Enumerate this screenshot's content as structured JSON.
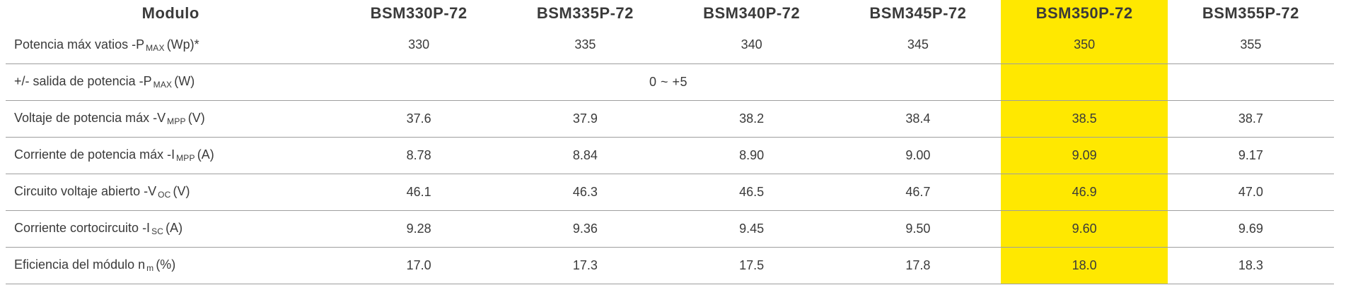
{
  "table": {
    "highlight_color": "#ffe800",
    "header": {
      "label_col": "Modulo",
      "columns": [
        "BSM330P-72",
        "BSM335P-72",
        "BSM340P-72",
        "BSM345P-72",
        "BSM350P-72",
        "BSM355P-72"
      ],
      "highlighted_column": "BSM350P-72"
    },
    "rows": [
      {
        "label_main": "Potencia máx vatios -P",
        "label_sub": "MAX",
        "label_end": "(Wp)*",
        "values": [
          "330",
          "335",
          "340",
          "345",
          "350",
          "355"
        ]
      },
      {
        "label_main": "+/- salida de potencia -P",
        "label_sub": "MAX",
        "label_end": "(W)",
        "span_value": "0 ~ +5"
      },
      {
        "label_main": "Voltaje de potencia máx -V",
        "label_sub": "MPP",
        "label_end": "(V)",
        "values": [
          "37.6",
          "37.9",
          "38.2",
          "38.4",
          "38.5",
          "38.7"
        ]
      },
      {
        "label_main": "Corriente de potencia máx -I",
        "label_sub": "MPP",
        "label_end": "(A)",
        "values": [
          "8.78",
          "8.84",
          "8.90",
          "9.00",
          "9.09",
          "9.17"
        ]
      },
      {
        "label_main": "Circuito voltaje abierto -V",
        "label_sub": "OC",
        "label_end": "(V)",
        "values": [
          "46.1",
          "46.3",
          "46.5",
          "46.7",
          "46.9",
          "47.0"
        ]
      },
      {
        "label_main": "Corriente cortocircuito -I",
        "label_sub": "SC",
        "label_end": "(A)",
        "values": [
          "9.28",
          "9.36",
          "9.45",
          "9.50",
          "9.60",
          "9.69"
        ]
      },
      {
        "label_main": "Eficiencia del módulo n",
        "label_sub": "m",
        "label_end": "(%)",
        "values": [
          "17.0",
          "17.3",
          "17.5",
          "17.8",
          "18.0",
          "18.3"
        ]
      }
    ]
  }
}
